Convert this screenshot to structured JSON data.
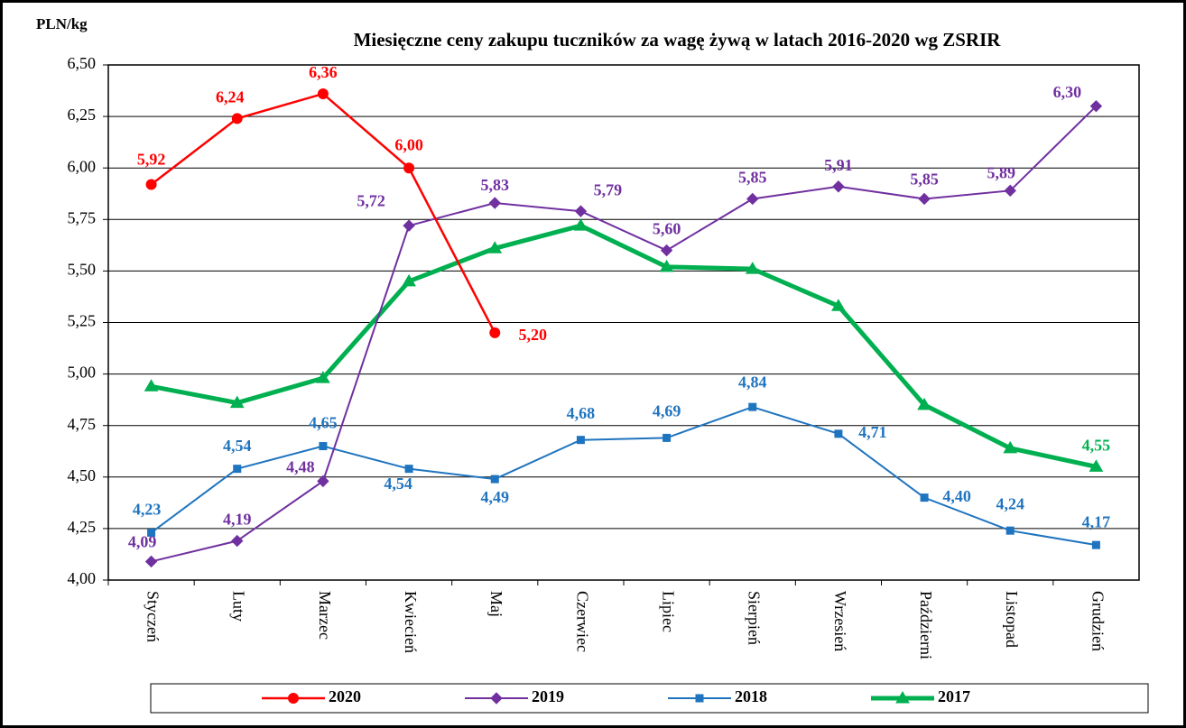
{
  "chart_data": {
    "type": "line",
    "title": "Miesięczne ceny zakupu tuczników za wagę żywą w latach 2016-2020  wg ZSRIR",
    "y_label": "PLN/kg",
    "categories": [
      "Styczeń",
      "Luty",
      "Marzec",
      "Kwiecień",
      "Maj",
      "Czerwiec",
      "Lipiec",
      "Sierpień",
      "Wrzesień",
      "Październi",
      "Listopad",
      "Grudzień"
    ],
    "ylim": [
      4,
      6.5
    ],
    "yticks": [
      {
        "value": 4,
        "label": "4,00"
      },
      {
        "value": 4.25,
        "label": "4,25"
      },
      {
        "value": 4.5,
        "label": "4,50"
      },
      {
        "value": 4.75,
        "label": "4,75"
      },
      {
        "value": 5,
        "label": "5,00"
      },
      {
        "value": 5.25,
        "label": "5,25"
      },
      {
        "value": 5.5,
        "label": "5,50"
      },
      {
        "value": 5.75,
        "label": "5,75"
      },
      {
        "value": 6,
        "label": "6,00"
      },
      {
        "value": 6.25,
        "label": "6,25"
      },
      {
        "value": 6.5,
        "label": "6,50"
      }
    ],
    "grid": true,
    "legend": "bottom",
    "series": [
      {
        "name": "2020",
        "color": "#ff0000",
        "marker": "circle",
        "values": [
          5.92,
          6.24,
          6.36,
          6.0,
          5.2,
          null,
          null,
          null,
          null,
          null,
          null,
          null
        ],
        "value_labels": [
          "5,92",
          "6,24",
          "6,36",
          "6,00",
          "5,20",
          null,
          null,
          null,
          null,
          null,
          null,
          null
        ]
      },
      {
        "name": "2019",
        "color": "#7030a0",
        "marker": "diamond",
        "values": [
          4.09,
          4.19,
          4.48,
          5.72,
          5.83,
          5.79,
          5.6,
          5.85,
          5.91,
          5.85,
          5.89,
          6.3
        ],
        "value_labels": [
          "4,09",
          "4,19",
          "4,48",
          "5,72",
          "5,83",
          "5,79",
          "5,60",
          "5,85",
          "5,91",
          "5,85",
          "5,89",
          "6,30"
        ]
      },
      {
        "name": "2018",
        "color": "#1f74bf",
        "marker": "square",
        "values": [
          4.23,
          4.54,
          4.65,
          4.54,
          4.49,
          4.68,
          4.69,
          4.84,
          4.71,
          4.4,
          4.24,
          4.17
        ],
        "value_labels": [
          "4,23",
          "4,54",
          "4,65",
          "4,54",
          "4,49",
          "4,68",
          "4,69",
          "4,84",
          "4,71",
          "4,40",
          "4,24",
          "4,17"
        ]
      },
      {
        "name": "2017",
        "color": "#00b050",
        "marker": "triangle",
        "values": [
          4.94,
          4.86,
          4.98,
          5.45,
          5.61,
          5.72,
          5.52,
          5.51,
          5.33,
          4.85,
          4.64,
          4.55
        ],
        "value_labels": [
          null,
          null,
          null,
          null,
          null,
          null,
          null,
          null,
          null,
          null,
          null,
          "4,55"
        ]
      }
    ]
  }
}
